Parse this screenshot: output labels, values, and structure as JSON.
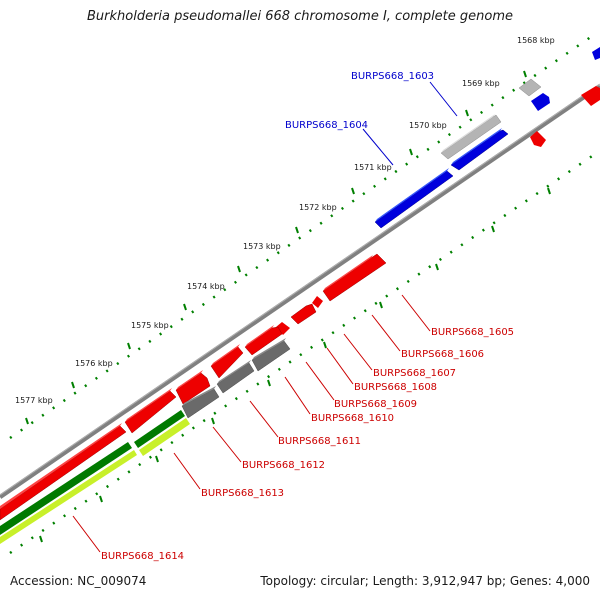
{
  "map": {
    "title": "Burkholderia pseudomallei 668 chromosome I, complete genome",
    "accession_text": "Accession: NC_009074",
    "topology_text": "Topology: circular; Length: 3,912,947 bp; Genes: 4,000"
  },
  "ticks": [
    "1568 kbp",
    "1569 kbp",
    "1570 kbp",
    "1571 kbp",
    "1572 kbp",
    "1573 kbp",
    "1574 kbp",
    "1575 kbp",
    "1576 kbp",
    "1577 kbp"
  ],
  "genes": [
    {
      "label": "BURPS668_1603",
      "strand": "forward",
      "color": "#0000cc"
    },
    {
      "label": "BURPS668_1604",
      "strand": "forward",
      "color": "#0000cc"
    },
    {
      "label": "BURPS668_1605",
      "strand": "reverse",
      "color": "#cc0000"
    },
    {
      "label": "BURPS668_1606",
      "strand": "reverse",
      "color": "#cc0000"
    },
    {
      "label": "BURPS668_1607",
      "strand": "reverse",
      "color": "#cc0000"
    },
    {
      "label": "BURPS668_1608",
      "strand": "reverse",
      "color": "#cc0000"
    },
    {
      "label": "BURPS668_1609",
      "strand": "reverse",
      "color": "#cc0000"
    },
    {
      "label": "BURPS668_1610",
      "strand": "reverse",
      "color": "#cc0000"
    },
    {
      "label": "BURPS668_1611",
      "strand": "reverse",
      "color": "#cc0000"
    },
    {
      "label": "BURPS668_1612",
      "strand": "reverse",
      "color": "#cc0000"
    },
    {
      "label": "BURPS668_1613",
      "strand": "reverse",
      "color": "#cc0000"
    },
    {
      "label": "BURPS668_1614",
      "strand": "reverse",
      "color": "#cc0000"
    }
  ],
  "colors": {
    "forward_cds": "#0000ff",
    "reverse_cds": "#ff0000",
    "forward_feature": "#c0c0c0",
    "reverse_feature": "#707070",
    "backbone": "#808080",
    "tick_marks": "#008000",
    "rna_dark": "#008000",
    "rna_light": "#ccff33"
  }
}
